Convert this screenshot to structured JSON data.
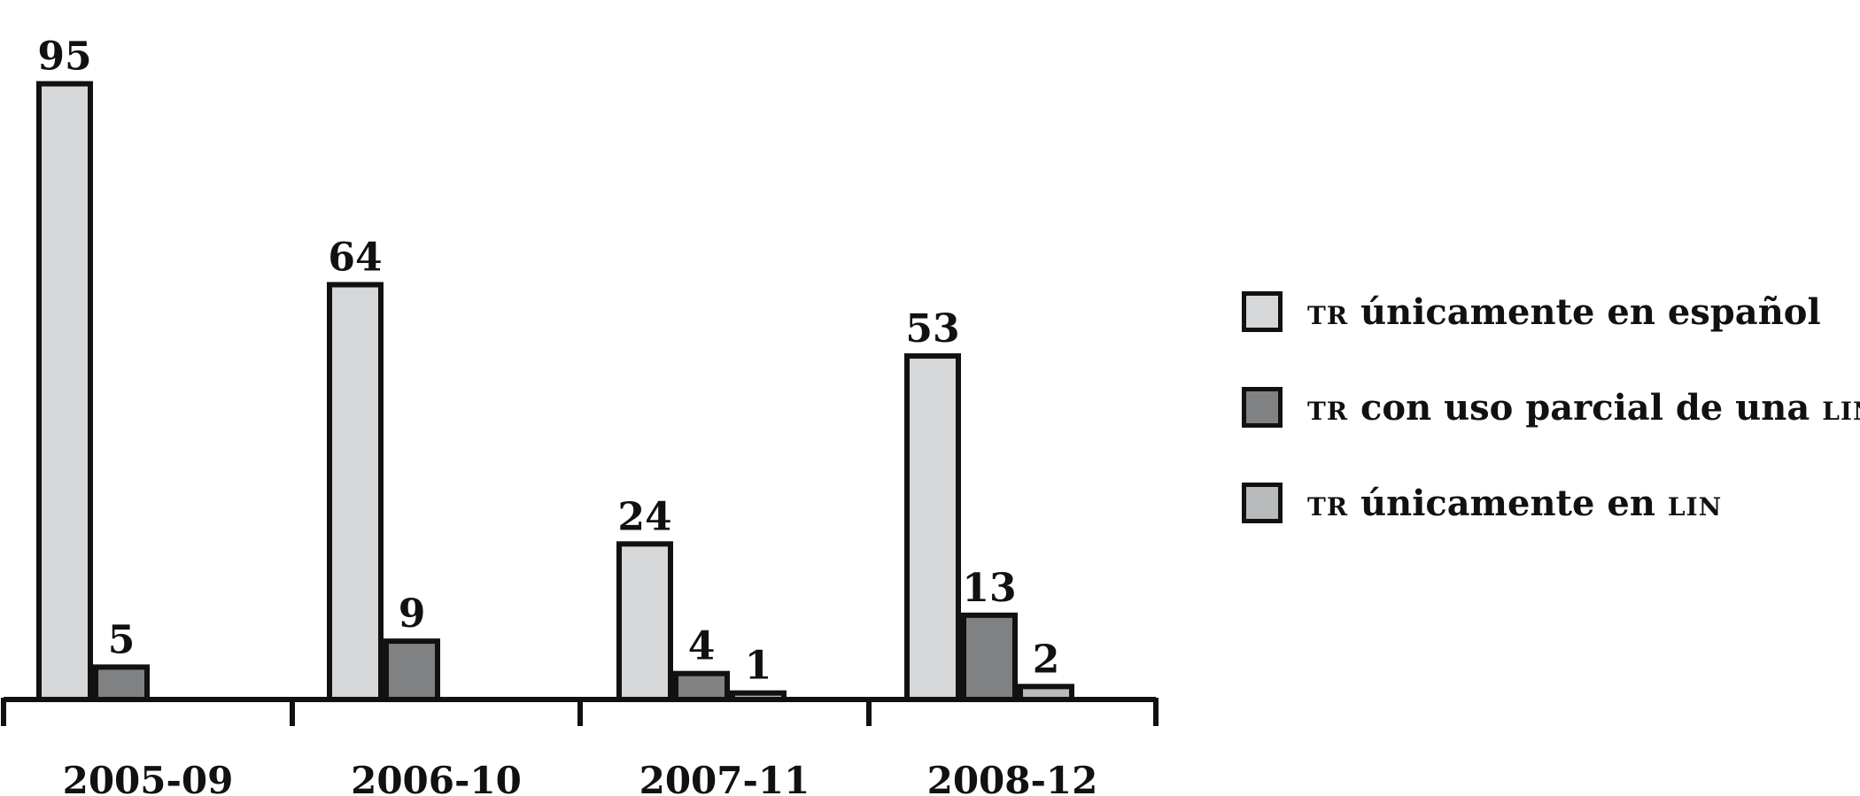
{
  "chart_data": {
    "type": "bar",
    "categories": [
      "2005-09",
      "2006-10",
      "2007-11",
      "2008-12"
    ],
    "series": [
      {
        "name": "TR únicamente en español",
        "values": [
          95,
          64,
          24,
          53
        ],
        "color": "#d6d7d9"
      },
      {
        "name": "TR con uso parcial de una LIN",
        "values": [
          5,
          9,
          4,
          13
        ],
        "color": "#808183"
      },
      {
        "name": "TR únicamente en LIN",
        "values": [
          null,
          null,
          1,
          2
        ],
        "color": "#b9babc"
      }
    ],
    "ylim": [
      0,
      100
    ],
    "grid": false,
    "legend_position": "right"
  },
  "legend": [
    {
      "prefix": "TR",
      "text": " únicamente en español",
      "suffix": "",
      "color": "#d6d7d9"
    },
    {
      "prefix": "TR",
      "text": " con uso parcial de una ",
      "suffix": "LIN",
      "color": "#808183"
    },
    {
      "prefix": "TR",
      "text": " únicamente en ",
      "suffix": "LIN",
      "color": "#b9babc"
    }
  ]
}
